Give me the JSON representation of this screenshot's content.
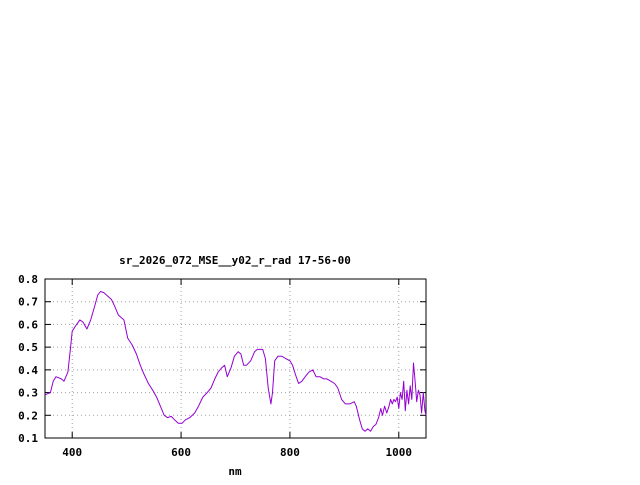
{
  "chart_data": {
    "type": "line",
    "title": "sr_2026_072_MSE__y02_r_rad 17-56-00",
    "xlabel": "nm",
    "ylabel": "",
    "xlim": [
      350,
      1050
    ],
    "ylim": [
      0.1,
      0.8
    ],
    "grid": true,
    "x_ticks": [
      400,
      600,
      800,
      1000
    ],
    "x_tick_labels": [
      "400",
      "600",
      "800",
      "1000"
    ],
    "y_ticks": [
      0.1,
      0.2,
      0.3,
      0.4,
      0.5,
      0.6,
      0.7,
      0.8
    ],
    "y_tick_labels": [
      "0.1",
      "0.2",
      "0.3",
      "0.4",
      "0.5",
      "0.6",
      "0.7",
      "0.8"
    ],
    "series": [
      {
        "color": "#9400d3",
        "points": [
          [
            350,
            0.29
          ],
          [
            360,
            0.3
          ],
          [
            365,
            0.35
          ],
          [
            370,
            0.37
          ],
          [
            380,
            0.36
          ],
          [
            385,
            0.35
          ],
          [
            392,
            0.39
          ],
          [
            397,
            0.5
          ],
          [
            400,
            0.57
          ],
          [
            408,
            0.6
          ],
          [
            414,
            0.62
          ],
          [
            420,
            0.61
          ],
          [
            427,
            0.58
          ],
          [
            434,
            0.62
          ],
          [
            440,
            0.67
          ],
          [
            447,
            0.73
          ],
          [
            452,
            0.745
          ],
          [
            458,
            0.74
          ],
          [
            465,
            0.725
          ],
          [
            472,
            0.71
          ],
          [
            478,
            0.68
          ],
          [
            485,
            0.64
          ],
          [
            495,
            0.62
          ],
          [
            502,
            0.54
          ],
          [
            510,
            0.51
          ],
          [
            518,
            0.47
          ],
          [
            525,
            0.42
          ],
          [
            532,
            0.38
          ],
          [
            540,
            0.34
          ],
          [
            548,
            0.31
          ],
          [
            555,
            0.28
          ],
          [
            562,
            0.24
          ],
          [
            569,
            0.2
          ],
          [
            575,
            0.19
          ],
          [
            582,
            0.195
          ],
          [
            588,
            0.18
          ],
          [
            595,
            0.165
          ],
          [
            602,
            0.165
          ],
          [
            608,
            0.18
          ],
          [
            616,
            0.19
          ],
          [
            625,
            0.21
          ],
          [
            632,
            0.24
          ],
          [
            640,
            0.28
          ],
          [
            648,
            0.3
          ],
          [
            655,
            0.32
          ],
          [
            662,
            0.36
          ],
          [
            668,
            0.39
          ],
          [
            675,
            0.41
          ],
          [
            680,
            0.42
          ],
          [
            685,
            0.37
          ],
          [
            692,
            0.41
          ],
          [
            698,
            0.46
          ],
          [
            705,
            0.48
          ],
          [
            710,
            0.47
          ],
          [
            715,
            0.42
          ],
          [
            720,
            0.42
          ],
          [
            728,
            0.44
          ],
          [
            735,
            0.48
          ],
          [
            740,
            0.49
          ],
          [
            750,
            0.49
          ],
          [
            755,
            0.45
          ],
          [
            760,
            0.32
          ],
          [
            765,
            0.25
          ],
          [
            768,
            0.3
          ],
          [
            772,
            0.44
          ],
          [
            778,
            0.46
          ],
          [
            785,
            0.46
          ],
          [
            792,
            0.45
          ],
          [
            800,
            0.44
          ],
          [
            805,
            0.42
          ],
          [
            810,
            0.38
          ],
          [
            816,
            0.34
          ],
          [
            822,
            0.35
          ],
          [
            828,
            0.37
          ],
          [
            835,
            0.39
          ],
          [
            842,
            0.4
          ],
          [
            848,
            0.37
          ],
          [
            855,
            0.37
          ],
          [
            862,
            0.36
          ],
          [
            868,
            0.36
          ],
          [
            875,
            0.35
          ],
          [
            882,
            0.34
          ],
          [
            888,
            0.32
          ],
          [
            895,
            0.27
          ],
          [
            902,
            0.25
          ],
          [
            910,
            0.25
          ],
          [
            918,
            0.26
          ],
          [
            922,
            0.24
          ],
          [
            928,
            0.18
          ],
          [
            933,
            0.14
          ],
          [
            938,
            0.13
          ],
          [
            943,
            0.14
          ],
          [
            948,
            0.13
          ],
          [
            953,
            0.15
          ],
          [
            958,
            0.16
          ],
          [
            963,
            0.19
          ],
          [
            967,
            0.23
          ],
          [
            970,
            0.2
          ],
          [
            974,
            0.24
          ],
          [
            978,
            0.21
          ],
          [
            982,
            0.24
          ],
          [
            985,
            0.27
          ],
          [
            988,
            0.25
          ],
          [
            991,
            0.27
          ],
          [
            994,
            0.26
          ],
          [
            997,
            0.28
          ],
          [
            1000,
            0.23
          ],
          [
            1003,
            0.3
          ],
          [
            1006,
            0.27
          ],
          [
            1009,
            0.35
          ],
          [
            1012,
            0.22
          ],
          [
            1015,
            0.31
          ],
          [
            1018,
            0.25
          ],
          [
            1021,
            0.33
          ],
          [
            1024,
            0.27
          ],
          [
            1027,
            0.43
          ],
          [
            1030,
            0.35
          ],
          [
            1033,
            0.26
          ],
          [
            1036,
            0.31
          ],
          [
            1039,
            0.29
          ],
          [
            1042,
            0.21
          ],
          [
            1045,
            0.3
          ],
          [
            1048,
            0.22
          ],
          [
            1050,
            0.2
          ]
        ]
      }
    ]
  }
}
